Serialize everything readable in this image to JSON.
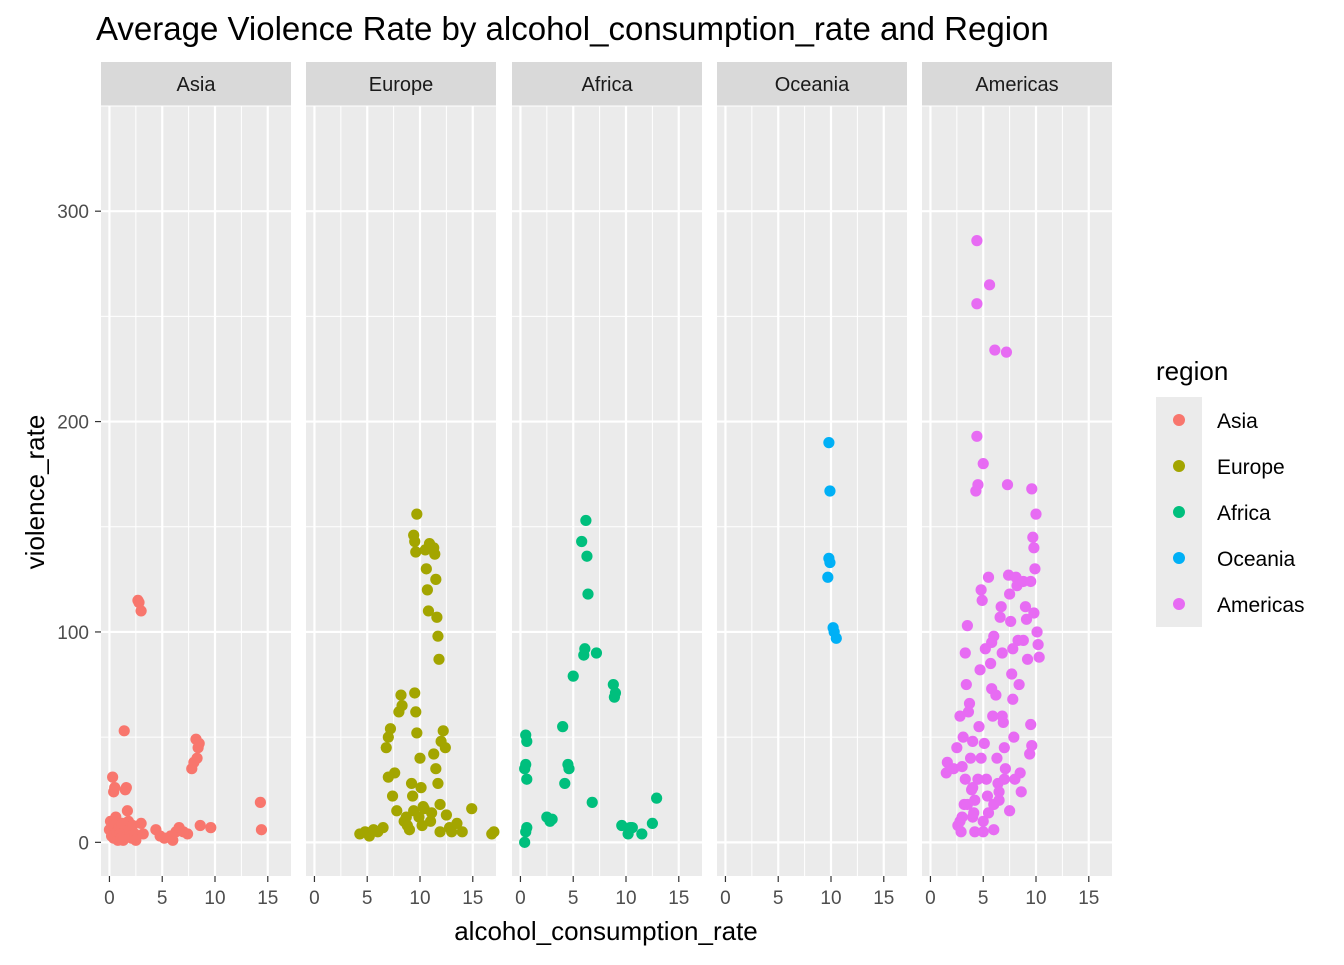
{
  "chart_data": {
    "type": "scatter",
    "title": "Average Violence Rate by alcohol_consumption_rate and Region",
    "xlabel": "alcohol_consumption_rate",
    "ylabel": "violence_rate",
    "xlim": [
      -0.8,
      17.2
    ],
    "ylim": [
      -16,
      350
    ],
    "x_ticks": [
      0,
      5,
      10,
      15
    ],
    "y_ticks": [
      0,
      100,
      200,
      300
    ],
    "grid": true,
    "facets": [
      "Asia",
      "Europe",
      "Africa",
      "Oceania",
      "Americas"
    ],
    "legend": {
      "title": "region",
      "placement": "right"
    },
    "series": [
      {
        "name": "Asia",
        "color": "#F8766D",
        "points": [
          [
            0.0,
            6
          ],
          [
            0.1,
            10
          ],
          [
            0.2,
            3
          ],
          [
            0.3,
            8
          ],
          [
            0.4,
            2
          ],
          [
            0.3,
            31
          ],
          [
            0.4,
            24
          ],
          [
            0.5,
            26
          ],
          [
            0.6,
            12
          ],
          [
            0.7,
            5
          ],
          [
            0.8,
            1
          ],
          [
            0.9,
            7
          ],
          [
            1.0,
            4
          ],
          [
            1.1,
            2
          ],
          [
            1.2,
            9
          ],
          [
            1.3,
            1
          ],
          [
            1.4,
            53
          ],
          [
            1.5,
            25
          ],
          [
            1.6,
            26
          ],
          [
            1.7,
            15
          ],
          [
            1.8,
            10
          ],
          [
            1.9,
            6
          ],
          [
            2.0,
            3
          ],
          [
            2.1,
            2
          ],
          [
            2.2,
            8
          ],
          [
            2.4,
            4
          ],
          [
            2.5,
            1
          ],
          [
            2.7,
            115
          ],
          [
            2.8,
            114
          ],
          [
            3.0,
            110
          ],
          [
            3.0,
            9
          ],
          [
            3.2,
            4
          ],
          [
            4.4,
            6
          ],
          [
            4.8,
            3
          ],
          [
            5.2,
            2
          ],
          [
            5.8,
            3
          ],
          [
            6.0,
            1
          ],
          [
            6.3,
            5
          ],
          [
            6.6,
            7
          ],
          [
            7.0,
            5
          ],
          [
            7.4,
            4
          ],
          [
            7.8,
            35
          ],
          [
            8.0,
            38
          ],
          [
            8.2,
            49
          ],
          [
            8.3,
            40
          ],
          [
            8.4,
            45
          ],
          [
            8.5,
            47
          ],
          [
            8.6,
            8
          ],
          [
            9.6,
            7
          ],
          [
            14.3,
            19
          ],
          [
            14.4,
            6
          ]
        ]
      },
      {
        "name": "Europe",
        "color": "#A3A500",
        "points": [
          [
            4.3,
            4
          ],
          [
            4.8,
            5
          ],
          [
            5.2,
            3
          ],
          [
            5.6,
            6
          ],
          [
            6.0,
            5
          ],
          [
            6.5,
            7
          ],
          [
            6.8,
            45
          ],
          [
            7.0,
            50
          ],
          [
            7.2,
            54
          ],
          [
            7.0,
            31
          ],
          [
            7.4,
            22
          ],
          [
            7.6,
            33
          ],
          [
            7.8,
            15
          ],
          [
            8.0,
            62
          ],
          [
            8.2,
            70
          ],
          [
            8.3,
            65
          ],
          [
            8.5,
            10
          ],
          [
            8.7,
            12
          ],
          [
            8.8,
            8
          ],
          [
            9.0,
            6
          ],
          [
            9.2,
            28
          ],
          [
            9.3,
            22
          ],
          [
            9.4,
            15
          ],
          [
            9.5,
            71
          ],
          [
            9.6,
            62
          ],
          [
            9.7,
            52
          ],
          [
            9.4,
            146
          ],
          [
            9.5,
            143
          ],
          [
            9.6,
            138
          ],
          [
            9.7,
            156
          ],
          [
            9.9,
            12
          ],
          [
            10.0,
            40
          ],
          [
            10.1,
            26
          ],
          [
            10.3,
            17
          ],
          [
            10.5,
            139
          ],
          [
            10.6,
            130
          ],
          [
            10.7,
            120
          ],
          [
            10.8,
            110
          ],
          [
            10.9,
            142
          ],
          [
            11.0,
            10
          ],
          [
            11.1,
            14
          ],
          [
            11.3,
            140
          ],
          [
            11.4,
            137
          ],
          [
            11.5,
            125
          ],
          [
            11.6,
            107
          ],
          [
            11.7,
            98
          ],
          [
            11.8,
            87
          ],
          [
            11.3,
            42
          ],
          [
            11.5,
            35
          ],
          [
            11.7,
            28
          ],
          [
            11.9,
            18
          ],
          [
            12.0,
            48
          ],
          [
            12.2,
            53
          ],
          [
            12.4,
            45
          ],
          [
            12.5,
            13
          ],
          [
            12.8,
            7
          ],
          [
            13.0,
            5
          ],
          [
            13.5,
            9
          ],
          [
            14.0,
            5
          ],
          [
            14.9,
            16
          ],
          [
            16.8,
            4
          ],
          [
            17.0,
            5
          ],
          [
            10.4,
            16
          ],
          [
            10.2,
            8
          ],
          [
            11.9,
            5
          ]
        ]
      },
      {
        "name": "Africa",
        "color": "#00BF7D",
        "points": [
          [
            0.4,
            0
          ],
          [
            0.5,
            5
          ],
          [
            0.6,
            7
          ],
          [
            0.4,
            35
          ],
          [
            0.5,
            37
          ],
          [
            0.6,
            30
          ],
          [
            0.5,
            51
          ],
          [
            0.6,
            48
          ],
          [
            2.5,
            12
          ],
          [
            2.8,
            10
          ],
          [
            3.0,
            11
          ],
          [
            4.0,
            55
          ],
          [
            4.2,
            28
          ],
          [
            4.5,
            37
          ],
          [
            4.6,
            35
          ],
          [
            5.0,
            79
          ],
          [
            5.8,
            143
          ],
          [
            6.0,
            89
          ],
          [
            6.1,
            92
          ],
          [
            6.2,
            153
          ],
          [
            6.3,
            136
          ],
          [
            6.4,
            118
          ],
          [
            6.8,
            19
          ],
          [
            7.2,
            90
          ],
          [
            8.8,
            75
          ],
          [
            8.9,
            69
          ],
          [
            9.0,
            71
          ],
          [
            9.6,
            8
          ],
          [
            10.2,
            4
          ],
          [
            10.4,
            7
          ],
          [
            10.6,
            7
          ],
          [
            11.5,
            4
          ],
          [
            12.5,
            9
          ],
          [
            12.9,
            21
          ]
        ]
      },
      {
        "name": "Oceania",
        "color": "#00B0F6",
        "points": [
          [
            9.8,
            190
          ],
          [
            9.9,
            167
          ],
          [
            9.8,
            135
          ],
          [
            9.9,
            133
          ],
          [
            9.7,
            126
          ],
          [
            10.2,
            102
          ],
          [
            10.3,
            100
          ],
          [
            10.5,
            97
          ]
        ]
      },
      {
        "name": "Americas",
        "color": "#E76BF3",
        "points": [
          [
            1.5,
            33
          ],
          [
            1.6,
            38
          ],
          [
            2.5,
            45
          ],
          [
            2.8,
            10
          ],
          [
            2.9,
            5
          ],
          [
            3.0,
            36
          ],
          [
            3.1,
            50
          ],
          [
            3.2,
            18
          ],
          [
            3.3,
            30
          ],
          [
            3.4,
            75
          ],
          [
            3.5,
            103
          ],
          [
            3.6,
            62
          ],
          [
            3.7,
            66
          ],
          [
            3.8,
            40
          ],
          [
            3.9,
            25
          ],
          [
            4.0,
            12
          ],
          [
            4.1,
            14
          ],
          [
            4.2,
            20
          ],
          [
            4.3,
            167
          ],
          [
            4.4,
            193
          ],
          [
            4.4,
            256
          ],
          [
            4.4,
            286
          ],
          [
            4.5,
            170
          ],
          [
            4.6,
            55
          ],
          [
            4.7,
            82
          ],
          [
            4.8,
            120
          ],
          [
            4.9,
            115
          ],
          [
            5.0,
            180
          ],
          [
            5.1,
            47
          ],
          [
            5.2,
            92
          ],
          [
            5.3,
            30
          ],
          [
            5.4,
            22
          ],
          [
            5.5,
            126
          ],
          [
            5.6,
            265
          ],
          [
            5.7,
            85
          ],
          [
            5.8,
            73
          ],
          [
            5.9,
            60
          ],
          [
            6.0,
            98
          ],
          [
            6.1,
            234
          ],
          [
            6.2,
            70
          ],
          [
            6.3,
            40
          ],
          [
            6.4,
            28
          ],
          [
            6.5,
            20
          ],
          [
            6.6,
            107
          ],
          [
            6.7,
            112
          ],
          [
            6.8,
            90
          ],
          [
            6.9,
            57
          ],
          [
            7.0,
            45
          ],
          [
            7.1,
            35
          ],
          [
            7.2,
            233
          ],
          [
            7.3,
            170
          ],
          [
            7.4,
            127
          ],
          [
            7.5,
            118
          ],
          [
            7.6,
            105
          ],
          [
            7.7,
            80
          ],
          [
            7.8,
            68
          ],
          [
            7.9,
            50
          ],
          [
            8.0,
            30
          ],
          [
            8.1,
            126
          ],
          [
            8.2,
            122
          ],
          [
            8.3,
            96
          ],
          [
            8.4,
            75
          ],
          [
            8.5,
            33
          ],
          [
            8.6,
            24
          ],
          [
            8.8,
            124
          ],
          [
            9.0,
            112
          ],
          [
            9.1,
            106
          ],
          [
            9.2,
            87
          ],
          [
            9.4,
            42
          ],
          [
            9.5,
            56
          ],
          [
            9.6,
            46
          ],
          [
            9.7,
            145
          ],
          [
            9.8,
            140
          ],
          [
            9.9,
            130
          ],
          [
            9.6,
            168
          ],
          [
            10.0,
            156
          ],
          [
            10.1,
            100
          ],
          [
            10.2,
            94
          ],
          [
            10.3,
            88
          ],
          [
            2.6,
            8
          ],
          [
            3.0,
            12
          ],
          [
            3.5,
            18
          ],
          [
            4.0,
            26
          ],
          [
            4.5,
            30
          ],
          [
            5.0,
            10
          ],
          [
            5.5,
            14
          ],
          [
            6.0,
            18
          ],
          [
            6.5,
            24
          ],
          [
            7.0,
            30
          ],
          [
            4.2,
            5
          ],
          [
            5.0,
            5
          ],
          [
            6.0,
            6
          ],
          [
            7.5,
            15
          ],
          [
            3.3,
            90
          ],
          [
            4.0,
            48
          ],
          [
            4.8,
            40
          ],
          [
            5.8,
            95
          ],
          [
            6.8,
            60
          ],
          [
            7.8,
            92
          ],
          [
            8.8,
            96
          ],
          [
            9.5,
            124
          ],
          [
            9.8,
            109
          ],
          [
            2.2,
            35
          ],
          [
            2.8,
            60
          ]
        ]
      }
    ]
  }
}
